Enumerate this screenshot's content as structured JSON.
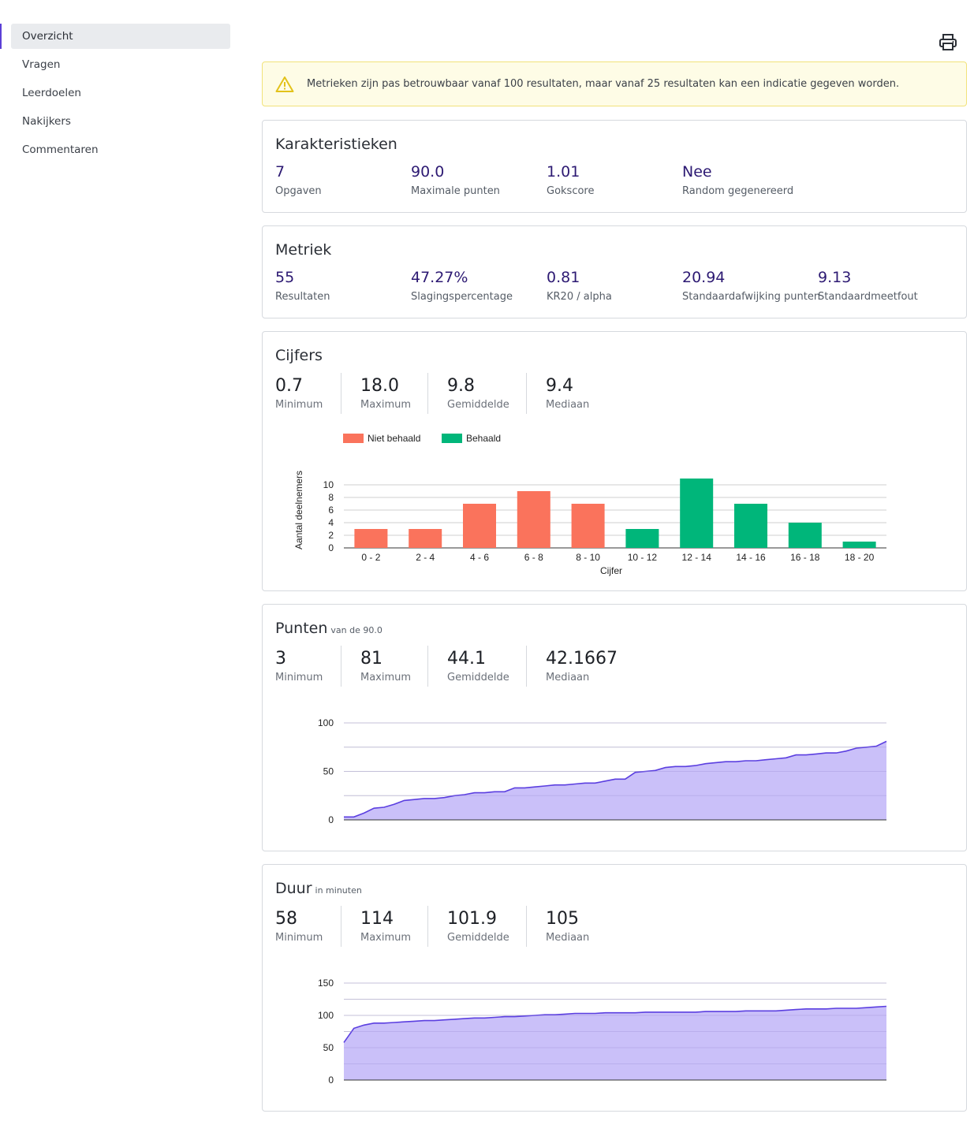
{
  "sidebar": {
    "items": [
      {
        "label": "Overzicht",
        "active": true
      },
      {
        "label": "Vragen"
      },
      {
        "label": "Leerdoelen"
      },
      {
        "label": "Nakijkers"
      },
      {
        "label": "Commentaren"
      }
    ]
  },
  "toolbar": {
    "print_icon": "print-icon"
  },
  "alert": {
    "icon": "warning-icon",
    "text": "Metrieken zijn pas betrouwbaar vanaf 100 resultaten, maar vanaf 25 resultaten kan een indicatie gegeven worden."
  },
  "characteristics": {
    "title": "Karakteristieken",
    "items": [
      {
        "value": "7",
        "label": "Opgaven"
      },
      {
        "value": "90.0",
        "label": "Maximale punten"
      },
      {
        "value": "1.01",
        "label": "Gokscore"
      },
      {
        "value": "Nee",
        "label": "Random gegenereerd"
      }
    ]
  },
  "metrics": {
    "title": "Metriek",
    "items": [
      {
        "value": "55",
        "label": "Resultaten"
      },
      {
        "value": "47.27%",
        "label": "Slagingspercentage"
      },
      {
        "value": "0.81",
        "label": "KR20 / alpha"
      },
      {
        "value": "20.94",
        "label": "Standaardafwijking punten"
      },
      {
        "value": "9.13",
        "label": "Standaardmeetfout"
      }
    ]
  },
  "grades": {
    "title": "Cijfers",
    "stats": [
      {
        "value": "0.7",
        "label": "Minimum"
      },
      {
        "value": "18.0",
        "label": "Maximum"
      },
      {
        "value": "9.8",
        "label": "Gemiddelde"
      },
      {
        "value": "9.4",
        "label": "Mediaan"
      }
    ]
  },
  "points": {
    "title": "Punten",
    "subtitle": "van de 90.0",
    "stats": [
      {
        "value": "3",
        "label": "Minimum"
      },
      {
        "value": "81",
        "label": "Maximum"
      },
      {
        "value": "44.1",
        "label": "Gemiddelde"
      },
      {
        "value": "42.1667",
        "label": "Mediaan"
      }
    ]
  },
  "duration": {
    "title": "Duur",
    "subtitle": "in minuten",
    "stats": [
      {
        "value": "58",
        "label": "Minimum"
      },
      {
        "value": "114",
        "label": "Maximum"
      },
      {
        "value": "101.9",
        "label": "Gemiddelde"
      },
      {
        "value": "105",
        "label": "Mediaan"
      }
    ]
  },
  "colors": {
    "fail": "#fa735c",
    "pass": "#00b67a",
    "area_fill": "#c7bdf9",
    "area_line": "#5b3fe0",
    "accent": "#5b3fd6"
  },
  "chart_data": [
    {
      "type": "bar",
      "categories": [
        "0 - 2",
        "2 - 4",
        "4 - 6",
        "6 - 8",
        "8 - 10",
        "10 - 12",
        "12 - 14",
        "14 - 16",
        "16 - 18",
        "18 - 20"
      ],
      "series": [
        {
          "name": "Niet behaald",
          "values": [
            3,
            3,
            7,
            9,
            7,
            0,
            0,
            0,
            0,
            0
          ]
        },
        {
          "name": "Behaald",
          "values": [
            0,
            0,
            0,
            0,
            0,
            3,
            11,
            7,
            4,
            1
          ]
        }
      ],
      "xlabel": "Cijfer",
      "ylabel": "Aantal deelnemers",
      "yticks": [
        0,
        2,
        4,
        6,
        8,
        10
      ],
      "ylim": [
        0,
        11
      ],
      "legend": "top-left",
      "grid": true
    },
    {
      "type": "area",
      "x": [
        1,
        2,
        3,
        4,
        5,
        6,
        7,
        8,
        9,
        10,
        11,
        12,
        13,
        14,
        15,
        16,
        17,
        18,
        19,
        20,
        21,
        22,
        23,
        24,
        25,
        26,
        27,
        28,
        29,
        30,
        31,
        32,
        33,
        34,
        35,
        36,
        37,
        38,
        39,
        40,
        41,
        42,
        43,
        44,
        45,
        46,
        47,
        48,
        49,
        50,
        51,
        52,
        53,
        54,
        55
      ],
      "values": [
        3,
        3,
        7,
        12,
        13,
        16,
        20,
        21,
        22,
        22,
        23,
        25,
        26,
        28,
        28,
        29,
        29,
        33,
        33,
        34,
        35,
        36,
        36,
        37,
        38,
        38,
        40,
        42,
        42,
        49,
        50,
        51,
        54,
        55,
        55,
        56,
        58,
        59,
        60,
        60,
        61,
        61,
        62,
        63,
        64,
        67,
        67,
        68,
        69,
        69,
        71,
        74,
        75,
        76,
        81
      ],
      "yticks": [
        0,
        50,
        100
      ],
      "ylim": [
        0,
        100
      ],
      "grid": true
    },
    {
      "type": "area",
      "x": [
        1,
        2,
        3,
        4,
        5,
        6,
        7,
        8,
        9,
        10,
        11,
        12,
        13,
        14,
        15,
        16,
        17,
        18,
        19,
        20,
        21,
        22,
        23,
        24,
        25,
        26,
        27,
        28,
        29,
        30,
        31,
        32,
        33,
        34,
        35,
        36,
        37,
        38,
        39,
        40,
        41,
        42,
        43,
        44,
        45,
        46,
        47,
        48,
        49,
        50,
        51,
        52,
        53,
        54,
        55
      ],
      "values": [
        58,
        80,
        85,
        88,
        88,
        89,
        90,
        91,
        92,
        92,
        93,
        94,
        95,
        96,
        96,
        97,
        98,
        98,
        99,
        100,
        101,
        101,
        102,
        103,
        103,
        103,
        104,
        104,
        104,
        104,
        105,
        105,
        105,
        105,
        105,
        105,
        106,
        106,
        106,
        106,
        107,
        107,
        107,
        107,
        108,
        109,
        110,
        110,
        110,
        111,
        111,
        111,
        112,
        113,
        114
      ],
      "yticks": [
        0,
        50,
        100,
        150
      ],
      "ylim": [
        0,
        150
      ],
      "grid": true
    }
  ]
}
